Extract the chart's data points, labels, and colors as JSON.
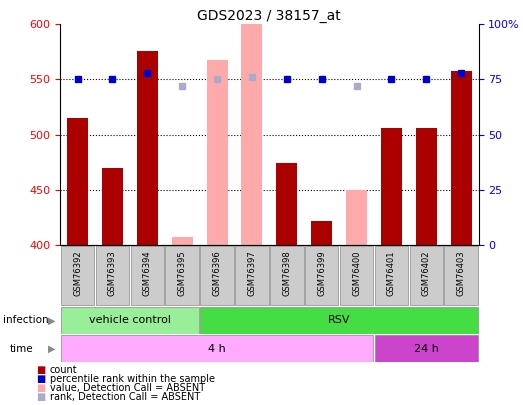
{
  "title": "GDS2023 / 38157_at",
  "samples": [
    "GSM76392",
    "GSM76393",
    "GSM76394",
    "GSM76395",
    "GSM76396",
    "GSM76397",
    "GSM76398",
    "GSM76399",
    "GSM76400",
    "GSM76401",
    "GSM76402",
    "GSM76403"
  ],
  "count_values": [
    515,
    470,
    576,
    null,
    null,
    null,
    474,
    422,
    null,
    506,
    506,
    558
  ],
  "count_absent": [
    null,
    null,
    null,
    407,
    568,
    600,
    null,
    null,
    450,
    null,
    null,
    null
  ],
  "rank_values": [
    75,
    75,
    78,
    null,
    null,
    null,
    75,
    75,
    null,
    75,
    75,
    78
  ],
  "rank_absent": [
    null,
    null,
    null,
    72,
    75,
    76,
    null,
    null,
    72,
    null,
    null,
    null
  ],
  "ylim_left": [
    400,
    600
  ],
  "ylim_right": [
    0,
    100
  ],
  "yticks_left": [
    400,
    450,
    500,
    550,
    600
  ],
  "yticks_right": [
    0,
    25,
    50,
    75,
    100
  ],
  "hlines": [
    450,
    500,
    550
  ],
  "infection_groups": [
    {
      "label": "vehicle control",
      "start": 0,
      "end": 3,
      "color": "#99ee99"
    },
    {
      "label": "RSV",
      "start": 4,
      "end": 11,
      "color": "#44dd44"
    }
  ],
  "time_groups": [
    {
      "label": "4 h",
      "start": 0,
      "end": 8,
      "color": "#ffaaff"
    },
    {
      "label": "24 h",
      "start": 9,
      "end": 11,
      "color": "#cc44cc"
    }
  ],
  "count_color": "#aa0000",
  "count_absent_color": "#ffaaaa",
  "rank_color": "#0000cc",
  "rank_absent_color": "#aaaacc",
  "bg_color": "#ffffff",
  "tick_label_bg": "#cccccc",
  "legend": [
    {
      "color": "#aa0000",
      "label": "count"
    },
    {
      "color": "#0000cc",
      "label": "percentile rank within the sample"
    },
    {
      "color": "#ffaaaa",
      "label": "value, Detection Call = ABSENT"
    },
    {
      "color": "#aaaacc",
      "label": "rank, Detection Call = ABSENT"
    }
  ]
}
